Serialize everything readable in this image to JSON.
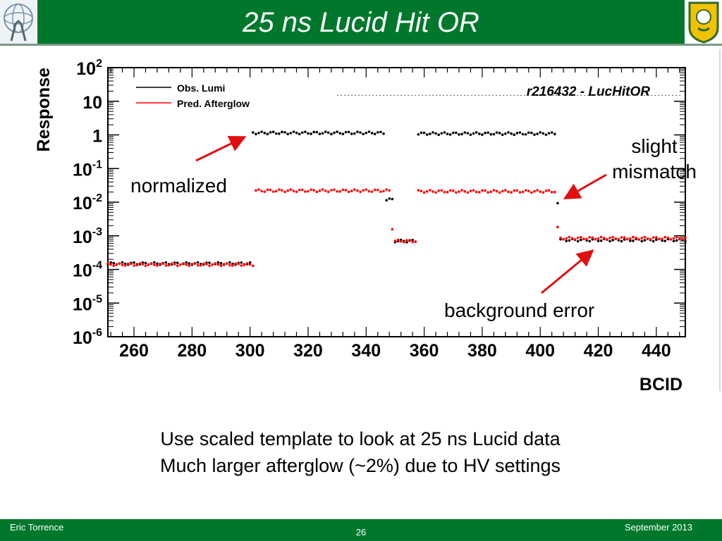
{
  "slide": {
    "title": "25 ns Lucid Hit OR",
    "footer_left": "Eric Torrence",
    "footer_center": "26",
    "footer_right": "September 2013",
    "caption_lines": [
      "Use scaled template to look at 25 ns Lucid data",
      "Much larger afterglow (~2%) due to HV settings"
    ],
    "annotations": {
      "normalized": "normalized",
      "slight_line1": "slight",
      "slight_line2": "mismatch",
      "background": "background error"
    },
    "colors": {
      "brand_green": "#00782c",
      "arrow_red": "#e01010"
    }
  },
  "chart_data": {
    "type": "scatter",
    "title": "r216432 - LucHitOR",
    "xlabel": "BCID",
    "ylabel": "Response",
    "xlim": [
      251,
      450
    ],
    "ylim": [
      1e-06,
      100
    ],
    "yscale": "log",
    "x_ticks": [
      260,
      280,
      300,
      320,
      340,
      360,
      380,
      400,
      420,
      440
    ],
    "y_ticks": [
      {
        "value": 1e-06,
        "base": "10",
        "exp": "-6"
      },
      {
        "value": 1e-05,
        "base": "10",
        "exp": "-5"
      },
      {
        "value": 0.0001,
        "base": "10",
        "exp": "-4"
      },
      {
        "value": 0.001,
        "base": "10",
        "exp": "-3"
      },
      {
        "value": 0.01,
        "base": "10",
        "exp": "-2"
      },
      {
        "value": 0.1,
        "base": "10",
        "exp": "-1"
      },
      {
        "value": 1,
        "base": "1",
        "exp": ""
      },
      {
        "value": 10,
        "base": "10",
        "exp": ""
      },
      {
        "value": 100,
        "base": "10",
        "exp": "2"
      }
    ],
    "legend_position": "top-left",
    "series": [
      {
        "name": "Obs. Lumi",
        "color": "#000000",
        "segments": [
          {
            "x_start": 251,
            "x_end": 300,
            "y": 0.00015
          },
          {
            "x_start": 301,
            "x_end": 346,
            "y": 1.15
          },
          {
            "x_start": 347,
            "x_end": 349,
            "y": 0.012
          },
          {
            "x_start": 350,
            "x_end": 357,
            "y": 0.0007
          },
          {
            "x_start": 358,
            "x_end": 405,
            "y": 1.1
          },
          {
            "x_start": 406,
            "x_end": 406,
            "y": 0.01
          },
          {
            "x_start": 407,
            "x_end": 450,
            "y": 0.00075
          }
        ]
      },
      {
        "name": "Pred. Afterglow",
        "color": "#ff0000",
        "segments": [
          {
            "x_start": 251,
            "x_end": 301,
            "y": 0.00014
          },
          {
            "x_start": 302,
            "x_end": 348,
            "y": 0.022
          },
          {
            "x_start": 349,
            "x_end": 349,
            "y": 0.0017
          },
          {
            "x_start": 350,
            "x_end": 357,
            "y": 0.0007
          },
          {
            "x_start": 358,
            "x_end": 405,
            "y": 0.021
          },
          {
            "x_start": 406,
            "x_end": 406,
            "y": 0.0017
          },
          {
            "x_start": 407,
            "x_end": 450,
            "y": 0.00085
          }
        ]
      }
    ]
  }
}
